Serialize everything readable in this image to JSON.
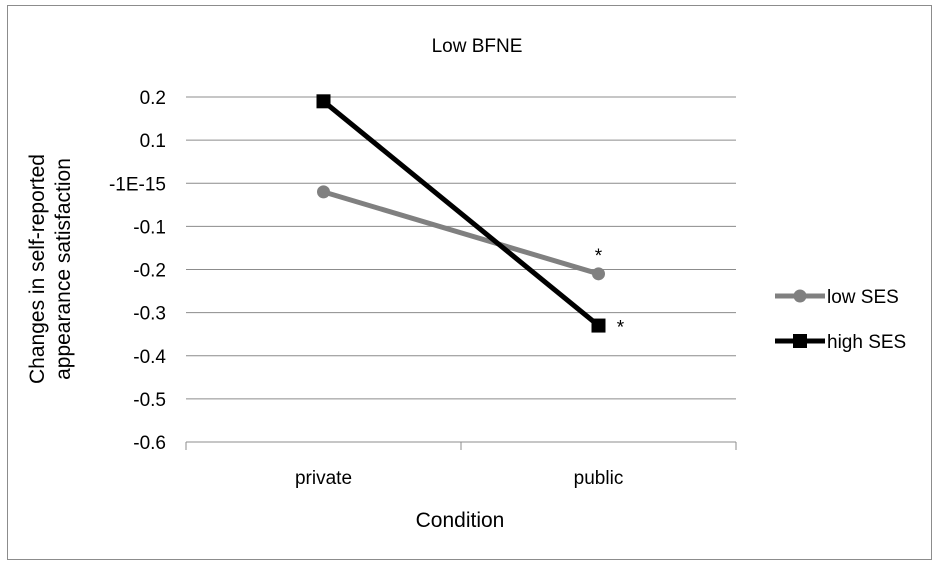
{
  "chart_data": {
    "type": "line",
    "title": "Low BFNE",
    "xlabel": "Condition",
    "ylabel_lines": [
      "Changes in self-reported",
      "appearance satisfaction"
    ],
    "categories": [
      "private",
      "public"
    ],
    "y_ticks": [
      0.2,
      0.1,
      0,
      -0.1,
      -0.2,
      -0.3,
      -0.4,
      -0.5,
      -0.6
    ],
    "y_tick_labels": [
      "0.2",
      "0.1",
      "-1E-15",
      "-0.1",
      "-0.2",
      "-0.3",
      "-0.4",
      "-0.5",
      "-0.6"
    ],
    "ylim": [
      -0.6,
      0.2
    ],
    "grid": true,
    "legend_position": "right",
    "series": [
      {
        "name": "low SES",
        "values": [
          -0.02,
          -0.21
        ],
        "color": "#808080",
        "marker": "circle",
        "annotations": [
          "",
          "*"
        ]
      },
      {
        "name": "high SES",
        "values": [
          0.19,
          -0.33
        ],
        "color": "#000000",
        "marker": "square",
        "annotations": [
          "",
          "*"
        ]
      }
    ]
  }
}
